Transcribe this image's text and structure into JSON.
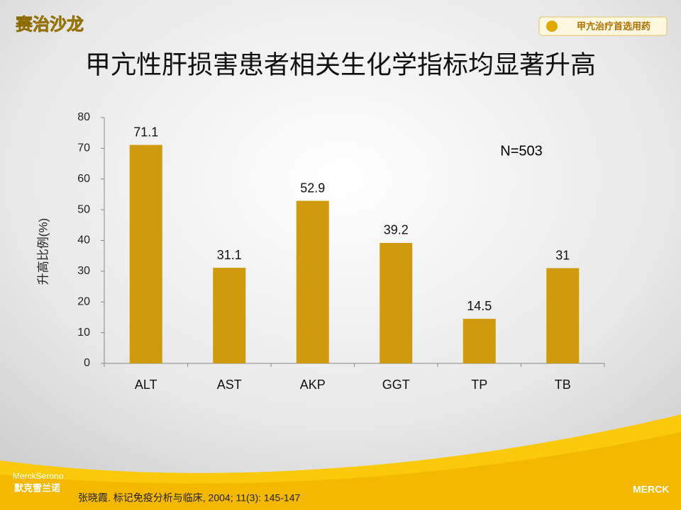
{
  "header": {
    "brand": "赛治沙龙",
    "logo_text": "甲亢治疗首选用药"
  },
  "chart_data": {
    "type": "bar",
    "title": "甲亢性肝损害患者相关生化学指标均显著升高",
    "y_label": "升高比例(%)",
    "annotation": "N=503",
    "categories": [
      "ALT",
      "AST",
      "AKP",
      "GGT",
      "TP",
      "TB"
    ],
    "values": [
      71.1,
      31.1,
      52.9,
      39.2,
      14.5,
      31
    ],
    "color": "#cf9a0c",
    "ylim": [
      0,
      80
    ],
    "yticks": [
      0,
      10,
      20,
      30,
      40,
      50,
      60,
      70,
      80
    ],
    "grid": false
  },
  "footer": {
    "citation": "张晓霞. 标记免疫分析与临床, 2004; 11(3): 145-147",
    "company_en": "MerckSerono",
    "company_cn": "默克雪兰诺",
    "merck": "MERCK"
  }
}
